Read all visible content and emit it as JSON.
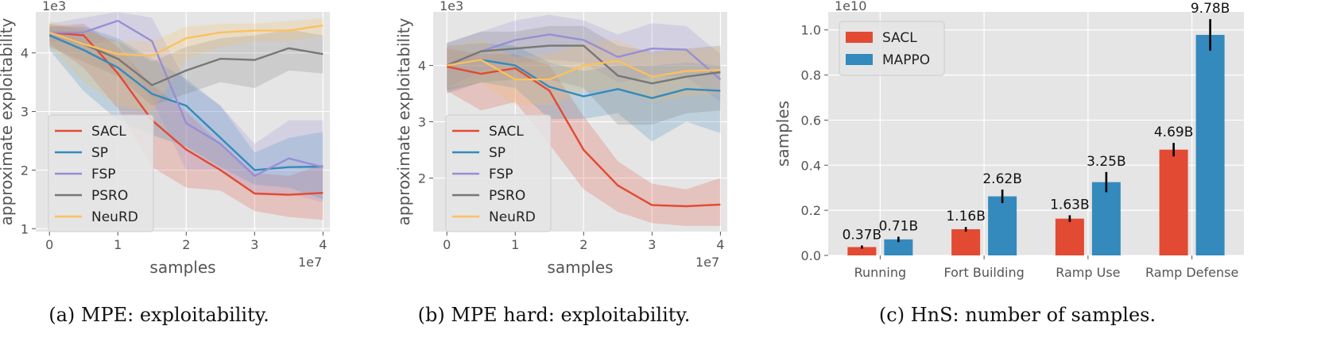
{
  "chart_data": [
    {
      "type": "line",
      "id": "a",
      "caption": "(a) MPE: exploitability.",
      "xlabel": "samples",
      "ylabel": "approximate exploitability",
      "x_multiplier": "1e7",
      "y_multiplier": "1e3",
      "xlim": [
        -0.2,
        4.1
      ],
      "ylim": [
        0.95,
        4.7
      ],
      "xticks": [
        0,
        1,
        2,
        3,
        4
      ],
      "yticks": [
        1,
        2,
        3,
        4
      ],
      "x": [
        0,
        0.5,
        1,
        1.5,
        2,
        2.5,
        3,
        3.5,
        4
      ],
      "legend_position": "lower-left",
      "series": [
        {
          "name": "SACL",
          "color": "#E24A33",
          "values": [
            4.35,
            4.3,
            3.65,
            2.85,
            2.35,
            2.0,
            1.6,
            1.58,
            1.61
          ],
          "lower": [
            4.15,
            3.75,
            3.05,
            2.05,
            1.7,
            1.65,
            1.3,
            1.2,
            1.15
          ],
          "upper": [
            4.45,
            4.5,
            4.1,
            3.45,
            3.0,
            2.45,
            1.95,
            1.9,
            2.1
          ]
        },
        {
          "name": "SP",
          "color": "#348ABD",
          "values": [
            4.3,
            4.05,
            3.75,
            3.3,
            3.1,
            2.55,
            2.0,
            2.05,
            2.06
          ],
          "lower": [
            4.05,
            3.35,
            2.85,
            2.6,
            2.4,
            2.05,
            1.75,
            1.7,
            1.5
          ],
          "upper": [
            4.45,
            4.45,
            4.25,
            3.9,
            3.55,
            3.1,
            2.3,
            2.55,
            2.65
          ]
        },
        {
          "name": "FSP",
          "color": "#988ED5",
          "values": [
            4.35,
            4.35,
            4.55,
            4.2,
            2.8,
            2.45,
            1.9,
            2.2,
            2.05
          ],
          "lower": [
            4.2,
            4.15,
            4.2,
            3.2,
            2.0,
            2.0,
            1.6,
            1.6,
            1.45
          ],
          "upper": [
            4.5,
            4.6,
            4.7,
            4.6,
            3.5,
            3.1,
            2.45,
            2.85,
            2.85
          ]
        },
        {
          "name": "PSRO",
          "color": "#777777",
          "values": [
            4.35,
            4.15,
            3.9,
            3.45,
            3.7,
            3.9,
            3.88,
            4.08,
            3.98
          ],
          "lower": [
            4.1,
            3.85,
            3.6,
            3.1,
            3.3,
            3.5,
            3.4,
            3.7,
            3.65
          ],
          "upper": [
            4.5,
            4.4,
            4.2,
            3.85,
            4.1,
            4.25,
            4.3,
            4.4,
            4.3
          ]
        },
        {
          "name": "NeuRD",
          "color": "#FBC15E",
          "values": [
            4.35,
            4.15,
            3.98,
            3.95,
            4.25,
            4.35,
            4.38,
            4.38,
            4.47
          ],
          "lower": [
            4.1,
            3.5,
            3.1,
            3.0,
            3.9,
            4.1,
            4.2,
            4.2,
            4.3
          ],
          "upper": [
            4.55,
            4.4,
            4.2,
            4.2,
            4.45,
            4.5,
            4.5,
            4.55,
            4.6
          ]
        }
      ]
    },
    {
      "type": "line",
      "id": "b",
      "caption": "(b) MPE hard: exploitability.",
      "xlabel": "samples",
      "ylabel": "approximate exploitability",
      "x_multiplier": "1e7",
      "y_multiplier": "1e3",
      "xlim": [
        -0.2,
        4.1
      ],
      "ylim": [
        1.05,
        4.95
      ],
      "xticks": [
        0,
        1,
        2,
        3,
        4
      ],
      "yticks": [
        2,
        3,
        4
      ],
      "x": [
        0,
        0.5,
        1,
        1.5,
        2,
        2.5,
        3,
        3.5,
        4
      ],
      "legend_position": "lower-left",
      "series": [
        {
          "name": "SACL",
          "color": "#E24A33",
          "values": [
            3.98,
            3.85,
            3.95,
            3.55,
            2.5,
            1.87,
            1.52,
            1.5,
            1.53
          ],
          "lower": [
            3.55,
            3.2,
            3.35,
            2.6,
            1.8,
            1.4,
            1.2,
            1.15,
            1.15
          ],
          "upper": [
            4.3,
            4.2,
            4.2,
            4.0,
            3.1,
            2.3,
            1.9,
            1.8,
            2.0
          ]
        },
        {
          "name": "SP",
          "color": "#348ABD",
          "values": [
            4.0,
            4.1,
            4.0,
            3.62,
            3.45,
            3.58,
            3.42,
            3.58,
            3.55
          ],
          "lower": [
            3.55,
            3.7,
            3.6,
            3.05,
            3.05,
            3.15,
            2.65,
            3.0,
            2.8
          ],
          "upper": [
            4.35,
            4.4,
            4.35,
            4.05,
            3.9,
            4.0,
            4.0,
            4.05,
            4.0
          ]
        },
        {
          "name": "FSP",
          "color": "#988ED5",
          "values": [
            4.0,
            4.25,
            4.45,
            4.55,
            4.45,
            4.15,
            4.3,
            4.28,
            3.75
          ],
          "lower": [
            3.6,
            3.9,
            4.05,
            4.1,
            4.05,
            3.7,
            3.8,
            3.8,
            3.35
          ],
          "upper": [
            4.4,
            4.6,
            4.8,
            4.9,
            4.8,
            4.55,
            4.75,
            4.7,
            4.2
          ]
        },
        {
          "name": "PSRO",
          "color": "#777777",
          "values": [
            4.0,
            4.25,
            4.3,
            4.35,
            4.35,
            3.82,
            3.68,
            3.8,
            3.88
          ],
          "lower": [
            3.5,
            3.7,
            3.75,
            3.75,
            3.6,
            2.95,
            2.95,
            3.15,
            3.2
          ],
          "upper": [
            4.4,
            4.6,
            4.6,
            4.7,
            4.7,
            4.35,
            4.25,
            4.3,
            4.35
          ]
        },
        {
          "name": "NeuRD",
          "color": "#FBC15E",
          "values": [
            4.0,
            4.1,
            3.75,
            3.75,
            4.0,
            4.08,
            3.8,
            3.9,
            3.92
          ],
          "lower": [
            3.6,
            3.7,
            3.3,
            3.3,
            3.55,
            3.6,
            3.35,
            3.45,
            3.5
          ],
          "upper": [
            4.35,
            4.45,
            4.15,
            4.2,
            4.4,
            4.45,
            4.2,
            4.3,
            4.3
          ]
        }
      ]
    },
    {
      "type": "bar",
      "id": "c",
      "caption": "(c) HnS: number of samples.",
      "xlabel": "",
      "ylabel": "samples",
      "y_multiplier": "1e10",
      "ylim": [
        0,
        1.08
      ],
      "yticks": [
        0.0,
        0.2,
        0.4,
        0.6,
        0.8,
        1.0
      ],
      "ytick_labels": [
        "0.0",
        "0.2",
        "0.4",
        "0.6",
        "0.8",
        "1.0"
      ],
      "categories": [
        "Running",
        "Fort Building",
        "Ramp Use",
        "Ramp Defense"
      ],
      "legend_position": "top-left",
      "series": [
        {
          "name": "SACL",
          "color": "#E24A33",
          "values": [
            0.037,
            0.116,
            0.163,
            0.469
          ],
          "errors": [
            0.007,
            0.01,
            0.015,
            0.03
          ],
          "labels": [
            "0.37B",
            "1.16B",
            "1.63B",
            "4.69B"
          ]
        },
        {
          "name": "MAPPO",
          "color": "#348ABD",
          "values": [
            0.071,
            0.262,
            0.325,
            0.978
          ],
          "errors": [
            0.012,
            0.03,
            0.045,
            0.07
          ],
          "labels": [
            "0.71B",
            "2.62B",
            "3.25B",
            "9.78B"
          ]
        }
      ]
    }
  ]
}
